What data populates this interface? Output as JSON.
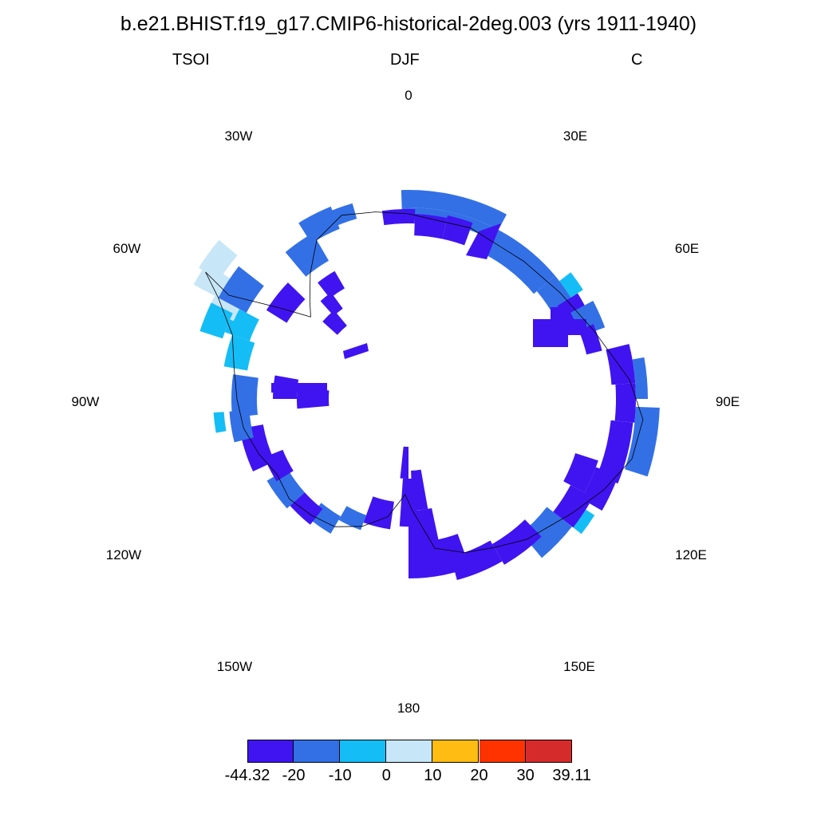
{
  "header": {
    "title": "b.e21.BHIST.f19_g17.CMIP6-historical-2deg.003 (yrs 1911-1940)",
    "variable": "TSOI",
    "season": "DJF",
    "units": "C"
  },
  "map": {
    "projection": "south-polar-stereographic",
    "longitude_labels": [
      "0",
      "30E",
      "60E",
      "90E",
      "120E",
      "150E",
      "180",
      "150W",
      "120W",
      "90W",
      "60W",
      "30W"
    ],
    "colors": {
      "coastline": "#000000"
    }
  },
  "colorbar": {
    "labels": [
      "-44.32",
      "-20",
      "-10",
      "0",
      "10",
      "20",
      "30",
      "39.11"
    ],
    "colors": [
      "#3f14f0",
      "#3370e6",
      "#14bdf5",
      "#c7e6f7",
      "#ffbd14",
      "#ff3300",
      "#d62b2b"
    ]
  },
  "chart_data": {
    "type": "heatmap",
    "title": "b.e21.BHIST.f19_g17.CMIP6-historical-2deg.003 (yrs 1911-1940)",
    "variable": "TSOI",
    "season": "DJF",
    "units": "C",
    "levels": [
      -44.32,
      -20,
      -10,
      0,
      10,
      20,
      30,
      39.11
    ],
    "dominant_category": "-44.32 to -20",
    "notes_visible": "Coastal ring of Antarctica; mostly -44.32 to -20 with -20 to -10 along much of the coast, -10 to 0 and 0 to 10 on the Antarctic Peninsula"
  }
}
